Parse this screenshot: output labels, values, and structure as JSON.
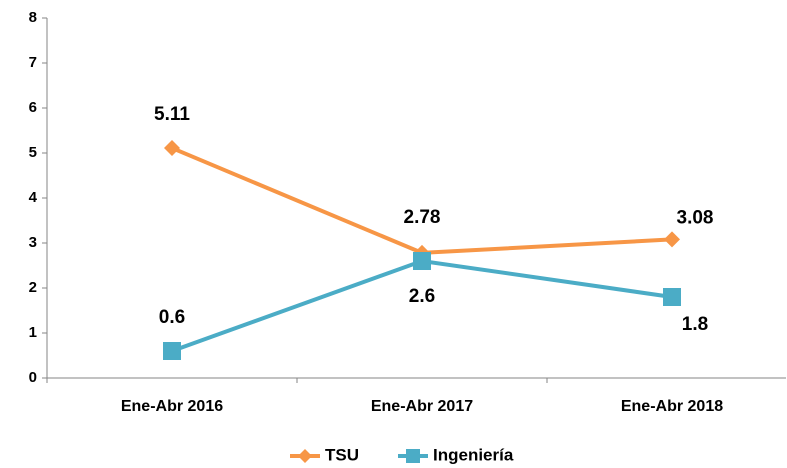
{
  "chart_data": {
    "type": "line",
    "categories": [
      "Ene-Abr 2016",
      "Ene-Abr 2017",
      "Ene-Abr 2018"
    ],
    "series": [
      {
        "name": "TSU",
        "color": "#f79646",
        "marker": "diamond",
        "values": [
          5.11,
          2.78,
          3.08
        ]
      },
      {
        "name": "Ingeniería",
        "color": "#4bacc6",
        "marker": "square",
        "values": [
          0.6,
          2.6,
          1.8
        ]
      }
    ],
    "ylim": [
      0,
      8
    ],
    "yticks": [
      0,
      1,
      2,
      3,
      4,
      5,
      6,
      7,
      8
    ],
    "grid": false,
    "legend": "bottom"
  }
}
